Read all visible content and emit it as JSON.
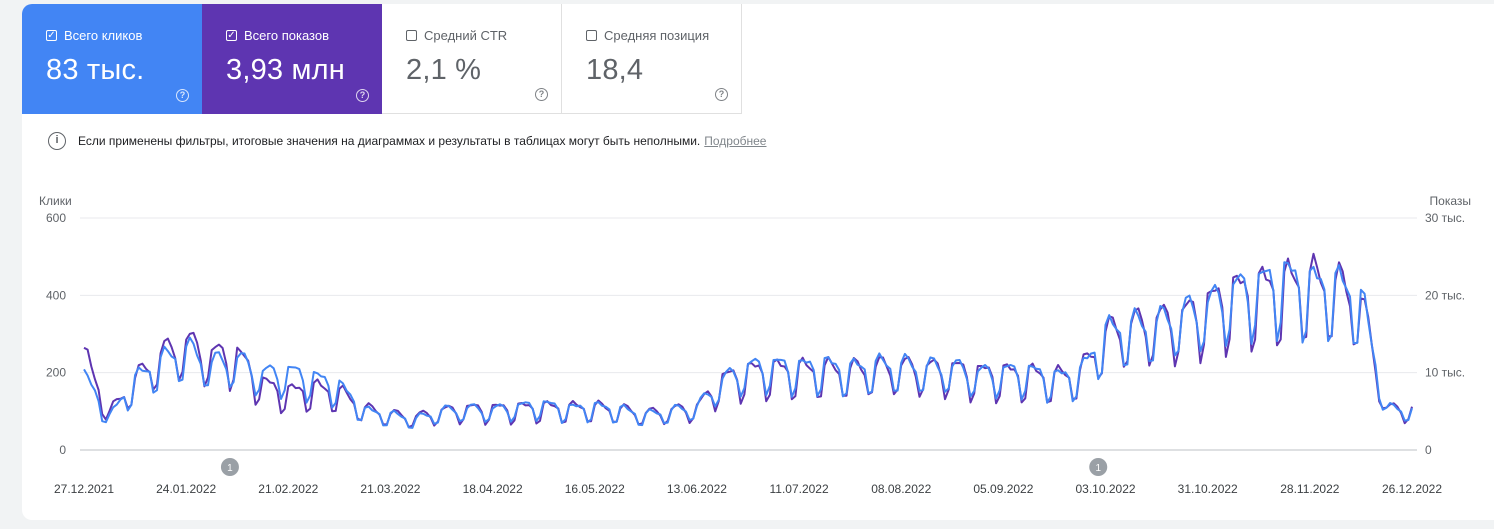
{
  "metrics": [
    {
      "label": "Всего кликов",
      "value": "83 тыс.",
      "checked": true,
      "color": "#4285f4"
    },
    {
      "label": "Всего показов",
      "value": "3,93 млн",
      "checked": true,
      "color": "#5e35b1"
    },
    {
      "label": "Средний CTR",
      "value": "2,1 %",
      "checked": false
    },
    {
      "label": "Средняя позиция",
      "value": "18,4",
      "checked": false
    }
  ],
  "notice": {
    "text": "Если применены фильтры, итоговые значения на диаграммах и результаты в таблицах могут быть неполными.",
    "link": "Подробнее"
  },
  "chart_data": {
    "type": "line",
    "left_axis": {
      "label": "Клики",
      "ticks": [
        "600",
        "400",
        "200",
        "0"
      ],
      "ylim": [
        0,
        600
      ]
    },
    "right_axis": {
      "label": "Показы",
      "ticks": [
        "30 тыс.",
        "20 тыс.",
        "10 тыс.",
        "0"
      ],
      "ylim": [
        0,
        30000
      ]
    },
    "x_tick_labels": [
      "27.12.2021",
      "24.01.2022",
      "21.02.2022",
      "21.03.2022",
      "18.04.2022",
      "16.05.2022",
      "13.06.2022",
      "11.07.2022",
      "08.08.2022",
      "05.09.2022",
      "03.10.2022",
      "31.10.2022",
      "28.11.2022",
      "26.12.2022"
    ],
    "x_range": [
      "2021-12-27",
      "2022-12-26"
    ],
    "annotations": [
      {
        "date": "2022-02-05",
        "label": "1"
      },
      {
        "date": "2022-10-01",
        "label": "1"
      }
    ],
    "series": [
      {
        "name": "Клики",
        "axis": "left",
        "color": "#4285f4",
        "values_weekly": [
          180,
          80,
          170,
          215,
          245,
          210,
          220,
          185,
          190,
          175,
          155,
          95,
          85,
          75,
          95,
          100,
          98,
          105,
          110,
          100,
          105,
          98,
          85,
          95,
          105,
          170,
          200,
          205,
          200,
          205,
          195,
          205,
          205,
          200,
          200,
          185,
          190,
          190,
          175,
          185,
          285,
          300,
          305,
          330,
          350,
          385,
          400,
          420,
          400,
          400,
          370,
          100
        ]
      },
      {
        "name": "Показы",
        "axis": "right",
        "color": "#5e35b1",
        "values_weekly": [
          11500,
          4500,
          8500,
          11500,
          13000,
          11500,
          11500,
          8000,
          7000,
          7500,
          7000,
          5000,
          4300,
          4000,
          4700,
          5000,
          5000,
          5100,
          5200,
          5100,
          5200,
          4900,
          4400,
          4800,
          5200,
          8500,
          9500,
          9700,
          9700,
          9700,
          9600,
          9900,
          10000,
          9800,
          9800,
          9300,
          9300,
          9200,
          8800,
          9300,
          14000,
          15000,
          15500,
          16000,
          17500,
          19000,
          19500,
          20000,
          20500,
          20000,
          18000,
          5000
        ]
      }
    ]
  }
}
